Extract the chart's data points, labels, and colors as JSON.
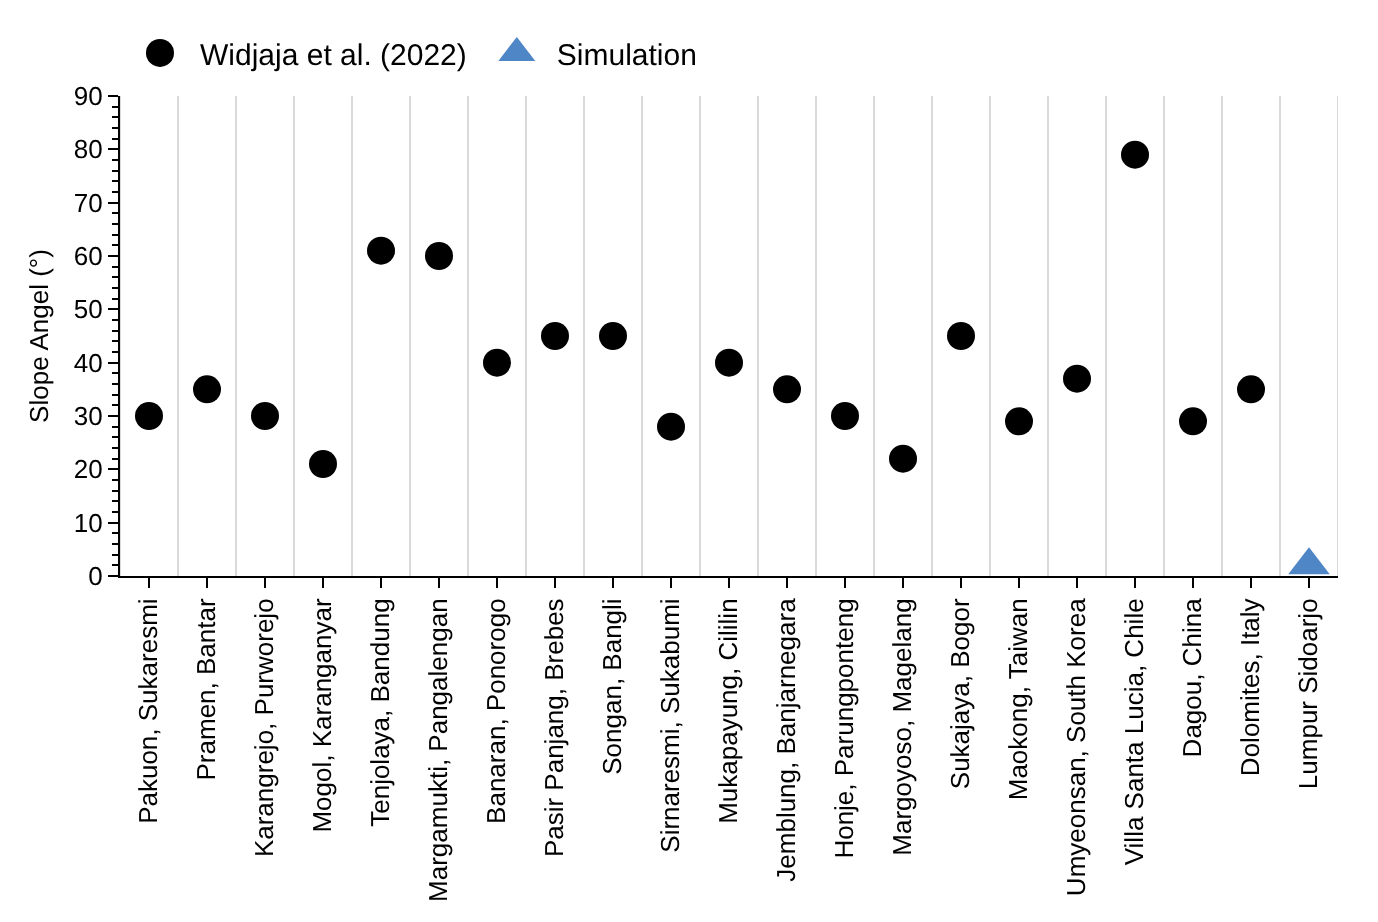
{
  "chart_data": {
    "type": "scatter",
    "ylabel": "Slope Angel (°)",
    "categories": [
      "Pakuon, Sukaresmi",
      "Pramen, Bantar",
      "Karangrejo, Purworejo",
      "Mogol, Karanganyar",
      "Tenjolaya, Bandung",
      "Margamukti, Pangalengan",
      "Banaran, Ponorogo",
      "Pasir Panjang, Brebes",
      "Songan, Bangli",
      "Sirnaresmi, Sukabumi",
      "Mukapayung, Cililin",
      "Jemblung, Banjarnegara",
      "Honje, Parungponteng",
      "Margoyoso, Magelang",
      "Sukajaya, Bogor",
      "Maokong, Taiwan",
      "Umyeonsan, South Korea",
      "Villa Santa Lucia, Chile",
      "Dagou, China",
      "Dolomites, Italy",
      "Lumpur Sidoarjo"
    ],
    "series": [
      {
        "name": "Widjaja et al. (2022)",
        "color": "#000000",
        "marker": "circle",
        "values": [
          30,
          35,
          30,
          21,
          61,
          60,
          40,
          45,
          45,
          28,
          40,
          35,
          30,
          22,
          45,
          29,
          37,
          79,
          29,
          35,
          null
        ]
      },
      {
        "name": "Simulation",
        "color": "#4f86c6",
        "marker": "triangle",
        "values": [
          null,
          null,
          null,
          null,
          null,
          null,
          null,
          null,
          null,
          null,
          null,
          null,
          null,
          null,
          null,
          null,
          null,
          null,
          null,
          null,
          2
        ]
      }
    ],
    "ylim": [
      0,
      90
    ],
    "yticks": [
      0,
      10,
      20,
      30,
      40,
      50,
      60,
      70,
      80,
      90
    ],
    "grid": "x",
    "legend": "top"
  }
}
